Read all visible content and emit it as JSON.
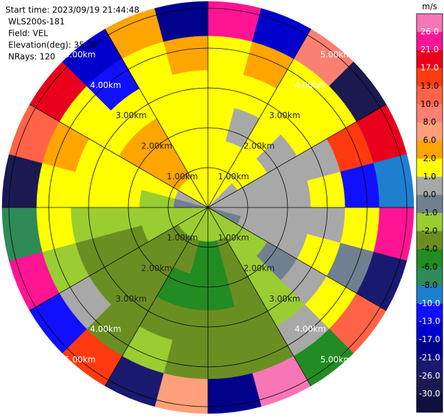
{
  "chart_data": {
    "type": "ppi",
    "annotations": [
      "Start time: 2023/09/19 21:44:48",
      "WLS200s-181",
      "Field: VEL",
      "Elevation(deg): 35.30",
      "NRays: 120"
    ],
    "rticks": [
      {
        "value": 1,
        "label": "1.00km"
      },
      {
        "value": 2,
        "label": "2.00km"
      },
      {
        "value": 3,
        "label": "3.00km"
      },
      {
        "value": 4,
        "label": "4.00km"
      },
      {
        "value": 5,
        "label": "5.00km"
      }
    ],
    "colorbar": {
      "label": "m/s",
      "ticks": [
        {
          "value": 26,
          "label": "26.0"
        },
        {
          "value": 21,
          "label": "21.0"
        },
        {
          "value": 17,
          "label": "17.0"
        },
        {
          "value": 13,
          "label": "13.0"
        },
        {
          "value": 10,
          "label": "10.0"
        },
        {
          "value": 8,
          "label": "8.0"
        },
        {
          "value": 6,
          "label": "6.0"
        },
        {
          "value": 2,
          "label": "2.0"
        },
        {
          "value": 1,
          "label": "1.0"
        },
        {
          "value": 0,
          "label": "0.0"
        },
        {
          "value": -1,
          "label": "-1.0"
        },
        {
          "value": -2,
          "label": "-2.0"
        },
        {
          "value": -4,
          "label": "-4.0"
        },
        {
          "value": -6,
          "label": "-6.0"
        },
        {
          "value": -8,
          "label": "-8.0"
        },
        {
          "value": -10,
          "label": "-10.0"
        },
        {
          "value": -13,
          "label": "-13.0"
        },
        {
          "value": -17,
          "label": "-17.0"
        },
        {
          "value": -21,
          "label": "-21.0"
        },
        {
          "value": -26,
          "label": "-26.0"
        },
        {
          "value": -30,
          "label": "-30.0"
        }
      ],
      "colors": [
        "#f776b6",
        "#ff1493",
        "#e8001c",
        "#ff3a10",
        "#ff6347",
        "#fa8072",
        "#ffa07a",
        "#ffa500",
        "#ffff00",
        "#a8a8a8",
        "#708090",
        "#9acd32",
        "#6b8e23",
        "#228b22",
        "#2e8b57",
        "#1e7fd0",
        "#1010ff",
        "#0000cd",
        "#00008b",
        "#191970",
        "#1a1a50",
        "#101040"
      ]
    },
    "field": [
      [
        1.5,
        1.5,
        1.5,
        0.5,
        0.5,
        0.5,
        0.5,
        -0.5,
        -1.5,
        -1.5,
        -1.5,
        -1.5,
        -1.5,
        -1.5,
        -1.5,
        -1.5,
        -1.5,
        -1.5,
        -0.5,
        0.5,
        1.5,
        1.5,
        1.5,
        1.5
      ],
      [
        1.5,
        1.5,
        1.5,
        1.5,
        0.5,
        0.5,
        0.5,
        0.5,
        -1.5,
        -1.5,
        -3,
        -5,
        -5,
        -3,
        -3,
        -3,
        -1.5,
        -1.5,
        -1.5,
        1.5,
        3,
        3,
        1.5,
        1.5
      ],
      [
        1.5,
        0.5,
        1.5,
        0.5,
        0.5,
        0.5,
        0.5,
        0.5,
        -0.5,
        -1.5,
        -3,
        -5,
        -5,
        -5,
        -3,
        -3,
        -3,
        -1.5,
        1.5,
        1.5,
        3,
        3,
        1.5,
        1.5
      ],
      [
        1.5,
        1.5,
        1.5,
        1.5,
        0.5,
        1.5,
        0.5,
        1.5,
        0.5,
        -1.5,
        -3,
        -3,
        -3,
        -3,
        -3,
        -3,
        -3,
        -1.5,
        1.5,
        1.5,
        1.5,
        1.5,
        1.5,
        1.5
      ],
      [
        1.5,
        3,
        1.5,
        1.5,
        14,
        -12,
        1.5,
        -0.5,
        1.5,
        0.5,
        -3,
        -3,
        -3,
        -1.5,
        -3,
        0.5,
        -1.5,
        1.5,
        1.5,
        3,
        1.5,
        -12,
        1.5,
        3
      ],
      [
        24,
        -15,
        9,
        -28,
        18,
        -9,
        23,
        -22,
        12,
        -5,
        27,
        -19,
        7,
        -24,
        15,
        -11,
        22,
        -7,
        -29,
        11,
        19,
        -14,
        5,
        -20
      ]
    ]
  }
}
